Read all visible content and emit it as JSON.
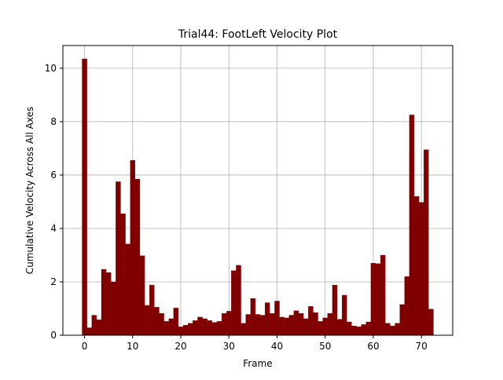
{
  "chart_data": {
    "type": "bar",
    "title": "Trial44: FootLeft Velocity Plot",
    "xlabel": "Frame",
    "ylabel": "Cumulative Velocity Across All Axes",
    "xlim": [
      -4.5,
      76.5
    ],
    "ylim": [
      0,
      10.85
    ],
    "xticks": [
      0,
      10,
      20,
      30,
      40,
      50,
      60,
      70
    ],
    "yticks": [
      0,
      2,
      4,
      6,
      8,
      10
    ],
    "grid": true,
    "bar_color": "#800000",
    "bar_width": 1.0,
    "x": [
      0,
      1,
      2,
      3,
      4,
      5,
      6,
      7,
      8,
      9,
      10,
      11,
      12,
      13,
      14,
      15,
      16,
      17,
      18,
      19,
      20,
      21,
      22,
      23,
      24,
      25,
      26,
      27,
      28,
      29,
      30,
      31,
      32,
      33,
      34,
      35,
      36,
      37,
      38,
      39,
      40,
      41,
      42,
      43,
      44,
      45,
      46,
      47,
      48,
      49,
      50,
      51,
      52,
      53,
      54,
      55,
      56,
      57,
      58,
      59,
      60,
      61,
      62,
      63,
      64,
      65,
      66,
      67,
      68,
      69,
      70,
      71,
      72
    ],
    "values": [
      10.35,
      0.28,
      0.75,
      0.58,
      2.47,
      2.35,
      2.0,
      5.75,
      4.55,
      3.42,
      6.55,
      5.85,
      2.98,
      1.12,
      1.88,
      1.05,
      0.82,
      0.52,
      0.62,
      1.02,
      0.32,
      0.38,
      0.45,
      0.55,
      0.68,
      0.62,
      0.55,
      0.48,
      0.52,
      0.82,
      0.9,
      2.42,
      2.62,
      0.45,
      0.78,
      1.38,
      0.78,
      0.75,
      1.22,
      0.82,
      1.28,
      0.68,
      0.65,
      0.75,
      0.92,
      0.82,
      0.62,
      1.08,
      0.85,
      0.52,
      0.65,
      0.82,
      1.88,
      0.6,
      1.5,
      0.5,
      0.35,
      0.32,
      0.4,
      0.5,
      2.7,
      2.68,
      3.0,
      0.45,
      0.35,
      0.45,
      1.15,
      2.2,
      8.25,
      5.2,
      4.98,
      6.95,
      0.98
    ]
  }
}
